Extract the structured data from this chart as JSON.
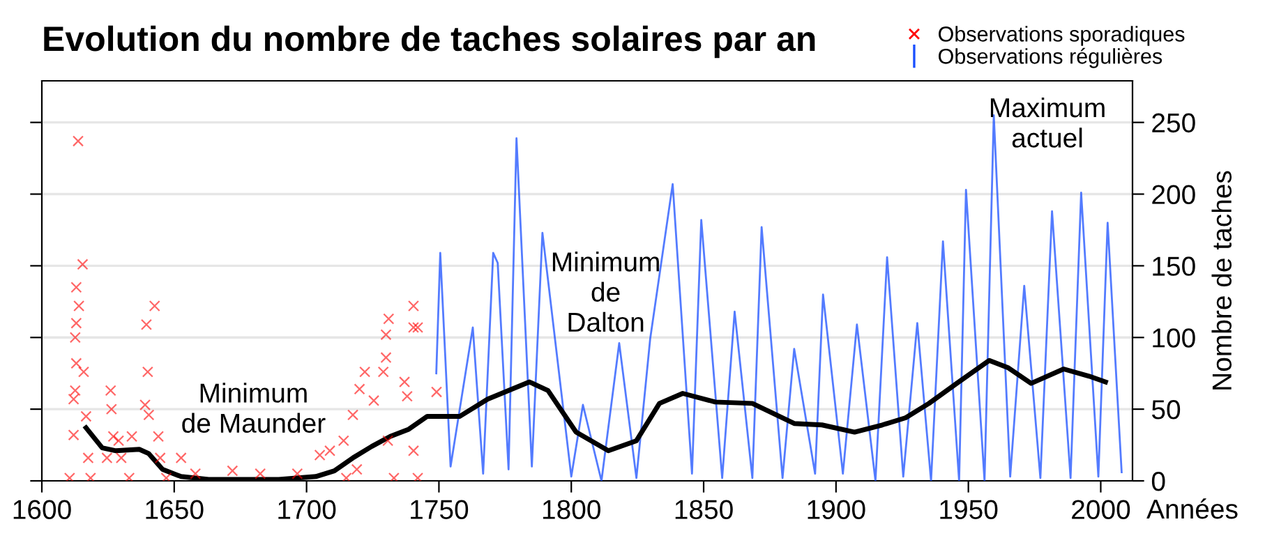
{
  "chart_data": {
    "type": "line",
    "title": "Evolution du nombre de taches solaires par an",
    "xlabel": "Années",
    "ylabel": "Nombre de taches",
    "xlim": [
      1600,
      2012
    ],
    "xticks": [
      1600,
      1650,
      1700,
      1750,
      1800,
      1850,
      1900,
      1950,
      2000
    ],
    "ylim": [
      0,
      279
    ],
    "yticks": [
      0,
      50,
      100,
      150,
      200,
      250
    ],
    "grid": "y",
    "legend": "top right",
    "series": [
      {
        "name": "Observations sporadiques",
        "type": "scatter",
        "marker": "cross",
        "color": "#ff0000",
        "x": [
          1613.7,
          1615.4,
          1613,
          1614,
          1613,
          1612.6,
          1613,
          1612.6,
          1612,
          1612,
          1610.5,
          1615.8,
          1616.7,
          1618.4,
          1617.5,
          1624.6,
          1630,
          1626,
          1626.3,
          1627,
          1629,
          1634,
          1633,
          1639.5,
          1640,
          1639,
          1640.4,
          1642.6,
          1644,
          1644.7,
          1652.6,
          1647,
          1658,
          1672,
          1682.5,
          1696.5,
          1705,
          1708.8,
          1714,
          1717.5,
          1720,
          1722,
          1725.4,
          1729,
          1730,
          1730,
          1731,
          1730.7,
          1737,
          1738,
          1740.4,
          1740.4,
          1742,
          1740.4,
          1742,
          1733,
          1719,
          1715,
          1749.1
        ],
        "values": [
          237,
          151,
          135,
          122,
          110,
          100,
          82,
          63,
          57,
          32,
          2,
          76,
          45,
          2,
          16,
          16,
          16,
          63,
          50,
          31,
          28,
          31,
          2,
          109,
          76,
          53,
          46,
          122,
          31,
          16,
          16,
          2,
          5,
          7,
          5,
          5,
          18,
          21,
          28,
          46,
          64,
          76,
          56,
          76,
          86,
          102,
          113,
          28,
          69,
          59,
          122,
          107,
          107,
          21,
          2,
          2,
          8,
          2,
          62
        ]
      },
      {
        "name": "Observations régulières",
        "color": "#1a4fff",
        "x": [
          1749.0,
          1750.5,
          1754.4,
          1762.8,
          1766.7,
          1770.5,
          1772.2,
          1776.3,
          1779.3,
          1785.1,
          1789.1,
          1800,
          1804.4,
          1811.4,
          1818.1,
          1824.6,
          1829.8,
          1838.3,
          1845.6,
          1849.1,
          1857,
          1861.7,
          1868.4,
          1871.9,
          1879.8,
          1884.2,
          1892.1,
          1895.1,
          1902.6,
          1907.9,
          1914.9,
          1919.3,
          1925.4,
          1930.7,
          1935.9,
          1940.4,
          1946.5,
          1949.1,
          1956.1,
          1959.6,
          1965.8,
          1971.1,
          1977.2,
          1981.6,
          1988.6,
          1992.6,
          1999.1,
          2002.6,
          2007.9
        ],
        "values": [
          75,
          159,
          10,
          107,
          5,
          159,
          152,
          8,
          239,
          10,
          173,
          3,
          53,
          0,
          96,
          2,
          99,
          207,
          5,
          182,
          2,
          118,
          2,
          177,
          2,
          92,
          5,
          130,
          5,
          109,
          0,
          156,
          3,
          110,
          0,
          167,
          0,
          203,
          0,
          255,
          3,
          136,
          2,
          188,
          2,
          201,
          3,
          180,
          6
        ]
      },
      {
        "color": "#000000",
        "x": [
          1616.7,
          1622.8,
          1628,
          1636.8,
          1640.4,
          1645.6,
          1652.6,
          1663,
          1689.5,
          1703.5,
          1710.5,
          1717.5,
          1724.6,
          1731.6,
          1738.6,
          1745.6,
          1757.9,
          1768.4,
          1784.2,
          1791.2,
          1801.8,
          1814,
          1824.6,
          1833.3,
          1842.1,
          1854.4,
          1868.4,
          1884.2,
          1894.7,
          1907,
          1917.5,
          1926.3,
          1935.1,
          1945.6,
          1957.9,
          1964.9,
          1973.7,
          1986,
          1995.6,
          2001.8
        ],
        "values": [
          37,
          23,
          21,
          22,
          19,
          8,
          3,
          1,
          1,
          3,
          7,
          16,
          24,
          31,
          36,
          45,
          45,
          57,
          69,
          63,
          34,
          21,
          28,
          54,
          61,
          55,
          54,
          40,
          39,
          34,
          39,
          44,
          54,
          68,
          84,
          79,
          68,
          78,
          73,
          69
        ]
      }
    ],
    "annotations": [
      "Minimum\nde Maunder",
      "Minimum\nde\nDalton",
      "Maximum\nactuel"
    ]
  }
}
